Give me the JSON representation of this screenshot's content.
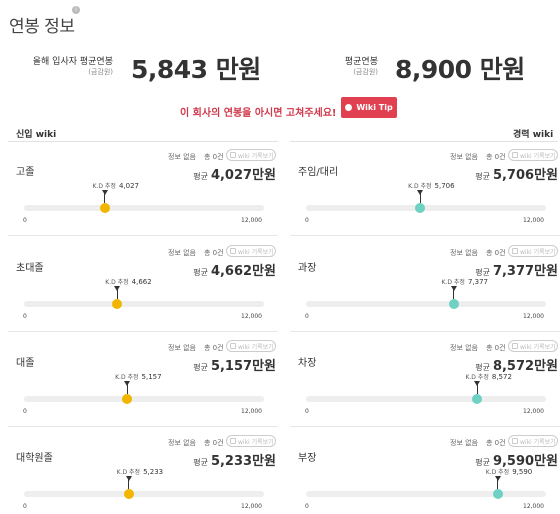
{
  "header": {
    "title": "연봉 정보",
    "info_icon": "i"
  },
  "stats": {
    "new_hire": {
      "label": "올해 입사자 평균연봉",
      "sub": "(금감원)",
      "value": "5,843 만원"
    },
    "average": {
      "label": "평균연봉",
      "sub": "(금감원)",
      "value": "8,900 만원"
    }
  },
  "promo": {
    "text": "이 회사의 연봉을 아시면 고쳐주세요!",
    "button": "Wiki Tip"
  },
  "columns": {
    "left": "신입 wiki",
    "right": "경력 wiki"
  },
  "colors": {
    "yellow": "#f2b600",
    "teal": "#6fd0c4",
    "accent": "#e04050"
  },
  "scale": {
    "min": "0",
    "max": "12,000",
    "max_value": 12000
  },
  "left_cards": [
    {
      "name": "고졸",
      "noinfo": "정보 없음",
      "count": "총 0건",
      "wiki": "wiki 기록보기",
      "avg_prefix": "평균",
      "avg": "4,027만원",
      "est_label": "K.D 추정",
      "est": "4,027",
      "value": 4027
    },
    {
      "name": "초대졸",
      "noinfo": "정보 없음",
      "count": "총 0건",
      "wiki": "wiki 기록보기",
      "avg_prefix": "평균",
      "avg": "4,662만원",
      "est_label": "K.D 추정",
      "est": "4,662",
      "value": 4662
    },
    {
      "name": "대졸",
      "noinfo": "정보 없음",
      "count": "총 0건",
      "wiki": "wiki 기록보기",
      "avg_prefix": "평균",
      "avg": "5,157만원",
      "est_label": "K.D 추정",
      "est": "5,157",
      "value": 5157
    },
    {
      "name": "대학원졸",
      "noinfo": "정보 없음",
      "count": "총 0건",
      "wiki": "wiki 기록보기",
      "avg_prefix": "평균",
      "avg": "5,233만원",
      "est_label": "K.D 추정",
      "est": "5,233",
      "value": 5233
    }
  ],
  "right_cards": [
    {
      "name": "주임/대리",
      "noinfo": "정보 없음",
      "count": "총 0건",
      "wiki": "wiki 기록보기",
      "avg_prefix": "평균",
      "avg": "5,706만원",
      "est_label": "K.D 추정",
      "est": "5,706",
      "value": 5706
    },
    {
      "name": "과장",
      "noinfo": "정보 없음",
      "count": "총 0건",
      "wiki": "wiki 기록보기",
      "avg_prefix": "평균",
      "avg": "7,377만원",
      "est_label": "K.D 추정",
      "est": "7,377",
      "value": 7377
    },
    {
      "name": "차장",
      "noinfo": "정보 없음",
      "count": "총 0건",
      "wiki": "wiki 기록보기",
      "avg_prefix": "평균",
      "avg": "8,572만원",
      "est_label": "K.D 추정",
      "est": "8,572",
      "value": 8572
    },
    {
      "name": "부장",
      "noinfo": "정보 없음",
      "count": "총 0건",
      "wiki": "wiki 기록보기",
      "avg_prefix": "평균",
      "avg": "9,590만원",
      "est_label": "K.D 추정",
      "est": "9,590",
      "value": 9590
    }
  ]
}
